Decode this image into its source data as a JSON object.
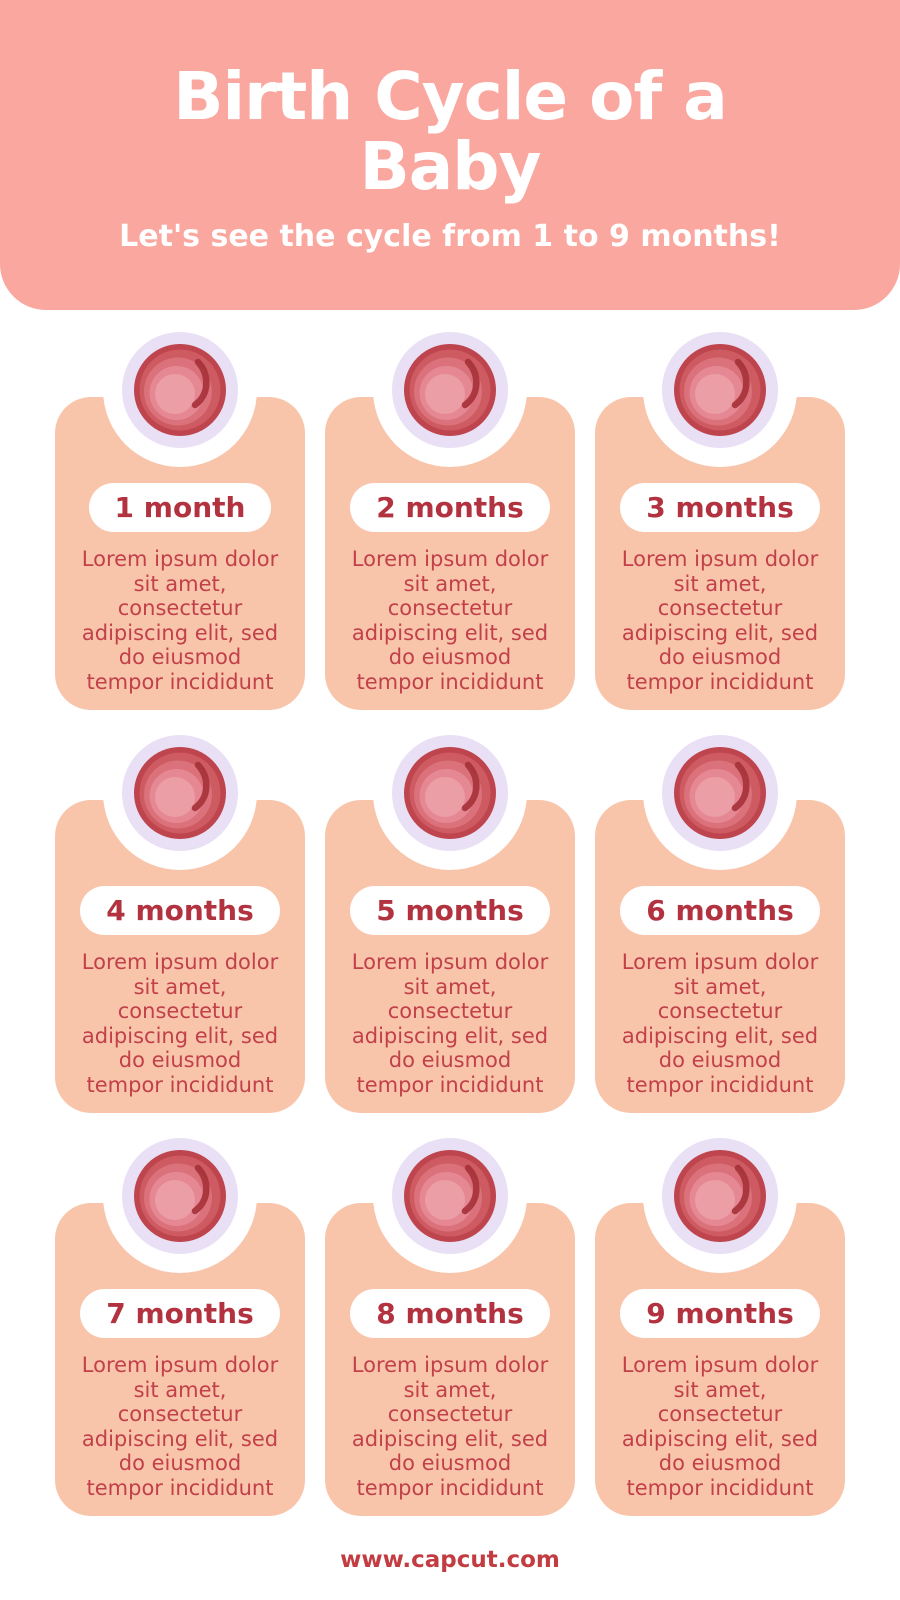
{
  "header": {
    "title": "Birth Cycle of a Baby",
    "title_lines": [
      "Birth Cycle of a",
      "Baby"
    ],
    "subtitle": "Let's see the cycle from 1 to 9 months!"
  },
  "cards": [
    {
      "label": "1 month",
      "icon": "fetus-month-1-icon",
      "body_lines": [
        "Lorem ipsum dolor",
        "sit amet,",
        "consectetur",
        "adipiscing elit, sed",
        "do eiusmod",
        "tempor incididunt"
      ]
    },
    {
      "label": "2 months",
      "icon": "fetus-month-2-icon",
      "body_lines": [
        "Lorem ipsum dolor",
        "sit amet,",
        "consectetur",
        "adipiscing elit, sed",
        "do eiusmod",
        "tempor incididunt"
      ]
    },
    {
      "label": "3 months",
      "icon": "fetus-month-3-icon",
      "body_lines": [
        "Lorem ipsum dolor",
        "sit amet,",
        "consectetur",
        "adipiscing elit, sed",
        "do eiusmod",
        "tempor incididunt"
      ]
    },
    {
      "label": "4 months",
      "icon": "fetus-month-4-icon",
      "body_lines": [
        "Lorem ipsum dolor",
        "sit amet,",
        "consectetur",
        "adipiscing elit, sed",
        "do eiusmod",
        "tempor incididunt"
      ]
    },
    {
      "label": "5 months",
      "icon": "fetus-month-5-icon",
      "body_lines": [
        "Lorem ipsum dolor",
        "sit amet,",
        "consectetur",
        "adipiscing elit, sed",
        "do eiusmod",
        "tempor incididunt"
      ]
    },
    {
      "label": "6 months",
      "icon": "fetus-month-6-icon",
      "body_lines": [
        "Lorem ipsum dolor",
        "sit amet,",
        "consectetur",
        "adipiscing elit, sed",
        "do eiusmod",
        "tempor incididunt"
      ]
    },
    {
      "label": "7 months",
      "icon": "fetus-month-7-icon",
      "body_lines": [
        "Lorem ipsum dolor",
        "sit amet,",
        "consectetur",
        "adipiscing elit, sed",
        "do eiusmod",
        "tempor incididunt"
      ]
    },
    {
      "label": "8 months",
      "icon": "fetus-month-8-icon",
      "body_lines": [
        "Lorem ipsum dolor",
        "sit amet,",
        "consectetur",
        "adipiscing elit, sed",
        "do eiusmod",
        "tempor incididunt"
      ]
    },
    {
      "label": "9 months",
      "icon": "fetus-month-9-icon",
      "body_lines": [
        "Lorem ipsum dolor",
        "sit amet,",
        "consectetur",
        "adipiscing elit, sed",
        "do eiusmod",
        "tempor incididunt"
      ]
    }
  ],
  "footer": {
    "url": "www.capcut.com"
  },
  "colors": {
    "page_bg": "#FFFFFF",
    "header_bg": "#FAA7A0",
    "header_text": "#FFFFFF",
    "card_bg": "#F8C5AB",
    "label_text": "#B23240",
    "body_text": "#C24049",
    "footer_text": "#C23C42",
    "ring_lavender": "#E9E0F5",
    "womb_dark": "#BE454D",
    "womb_mid": "#CE5A62",
    "womb_light1": "#DB717B",
    "womb_light2": "#E58893",
    "womb_light3": "#EC9EA6",
    "swirl_dark": "#A53139",
    "fetus_skin": "#FBDFC6",
    "fetus_shade": "#F0C6A9",
    "fetus_eye": "#8A4038",
    "fetus_cheek": "#F5A9A4"
  }
}
